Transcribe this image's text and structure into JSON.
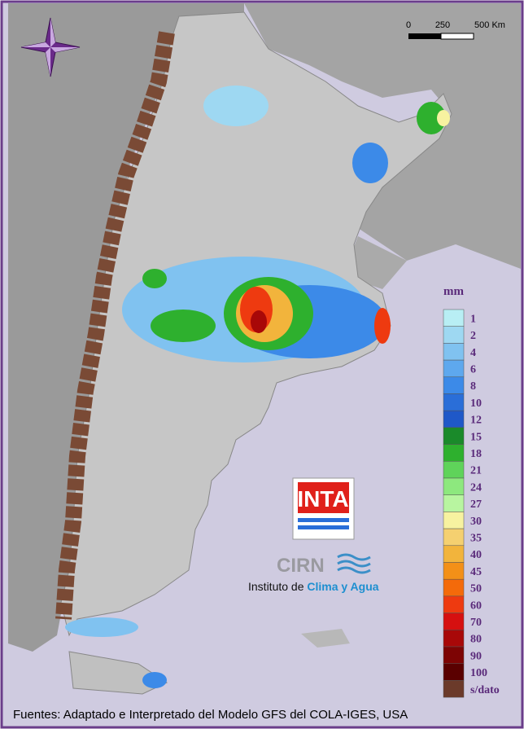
{
  "scale_bar": {
    "labels": [
      "0",
      "250",
      "500 Km"
    ]
  },
  "legend": {
    "title": "mm",
    "entries": [
      {
        "label": "1",
        "color": "#b8eef4"
      },
      {
        "label": "2",
        "color": "#9ed8f2"
      },
      {
        "label": "4",
        "color": "#80c2f0"
      },
      {
        "label": "6",
        "color": "#5ea8ee"
      },
      {
        "label": "8",
        "color": "#3c8ae8"
      },
      {
        "label": "10",
        "color": "#2a6ed8"
      },
      {
        "label": "12",
        "color": "#1f58c8"
      },
      {
        "label": "15",
        "color": "#1a8a2a"
      },
      {
        "label": "18",
        "color": "#2eb02e"
      },
      {
        "label": "21",
        "color": "#5fd35a"
      },
      {
        "label": "24",
        "color": "#8de87e"
      },
      {
        "label": "27",
        "color": "#b8f5a0"
      },
      {
        "label": "30",
        "color": "#f7f2a0"
      },
      {
        "label": "35",
        "color": "#f5d070"
      },
      {
        "label": "40",
        "color": "#f2b43c"
      },
      {
        "label": "45",
        "color": "#f39018"
      },
      {
        "label": "50",
        "color": "#f46a0a"
      },
      {
        "label": "60",
        "color": "#ee3a10"
      },
      {
        "label": "70",
        "color": "#d61010"
      },
      {
        "label": "80",
        "color": "#a80808"
      },
      {
        "label": "90",
        "color": "#7d0404"
      },
      {
        "label": "100",
        "color": "#5a0000"
      },
      {
        "label": "s/dato",
        "color": "#6b3a2a"
      }
    ]
  },
  "logo": {
    "inta": "INTA",
    "cirn": "CIRN",
    "institute_prefix": "Instituto de",
    "institute_name": "Clima y Agua"
  },
  "footer": "Fuentes: Adaptado e Interpretado del Modelo GFS del COLA-IGES, USA"
}
